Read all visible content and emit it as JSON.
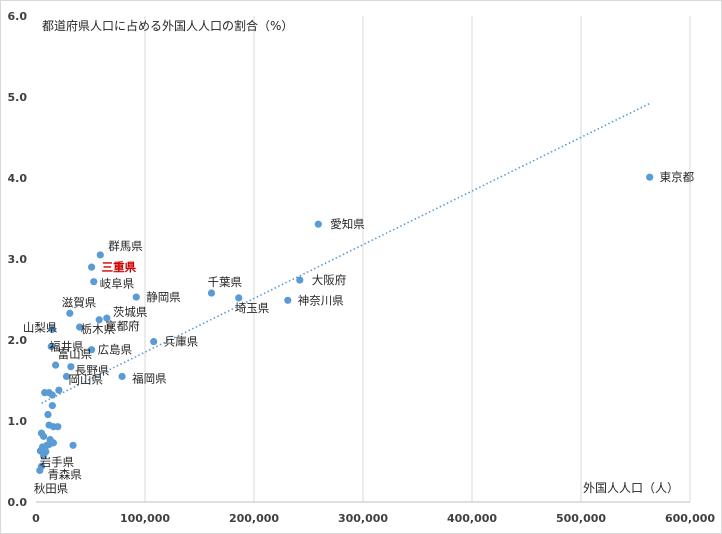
{
  "chart_data": {
    "type": "scatter",
    "title": "",
    "ylabel": "都道府県人口に占める外国人人口の割合（%）",
    "xlabel": "外国人人口（人）",
    "xlim": [
      0,
      600000
    ],
    "ylim": [
      0,
      6
    ],
    "x_ticks": [
      "0",
      "100,000",
      "200,000",
      "300,000",
      "400,000",
      "500,000",
      "600,000"
    ],
    "y_ticks": [
      "0.0",
      "1.0",
      "2.0",
      "3.0",
      "4.0",
      "5.0",
      "6.0"
    ],
    "grid": "vertical",
    "trendline": {
      "style": "dotted",
      "x": [
        5000,
        563000
      ],
      "y": [
        1.22,
        4.92
      ]
    },
    "highlight_color": "#cc0000",
    "marker_color": "#5b9bd5",
    "points": [
      {
        "label": "東京都",
        "x": 563000,
        "y": 4.01
      },
      {
        "label": "愛知県",
        "x": 259000,
        "y": 3.43
      },
      {
        "label": "大阪府",
        "x": 242000,
        "y": 2.74
      },
      {
        "label": "千葉県",
        "x": 161000,
        "y": 2.58
      },
      {
        "label": "埼玉県",
        "x": 186000,
        "y": 2.52
      },
      {
        "label": "神奈川県",
        "x": 231000,
        "y": 2.49
      },
      {
        "label": "兵庫県",
        "x": 108000,
        "y": 1.98
      },
      {
        "label": "福岡県",
        "x": 79000,
        "y": 1.55
      },
      {
        "label": "静岡県",
        "x": 92000,
        "y": 2.53
      },
      {
        "label": "群馬県",
        "x": 59000,
        "y": 3.05
      },
      {
        "label": "三重県",
        "x": 51000,
        "y": 2.9,
        "highlight": true
      },
      {
        "label": "岐阜県",
        "x": 53000,
        "y": 2.72
      },
      {
        "label": "茨城県",
        "x": 65000,
        "y": 2.27
      },
      {
        "label": "京都府",
        "x": 58000,
        "y": 2.25
      },
      {
        "label": "滋賀県",
        "x": 31000,
        "y": 2.33
      },
      {
        "label": "栃木県",
        "x": 40000,
        "y": 2.16
      },
      {
        "label": "山梨県",
        "x": 15000,
        "y": 2.13
      },
      {
        "label": "福井県",
        "x": 14000,
        "y": 1.92
      },
      {
        "label": "広島県",
        "x": 51000,
        "y": 1.88
      },
      {
        "label": "富山県",
        "x": 18000,
        "y": 1.69
      },
      {
        "label": "長野県",
        "x": 32000,
        "y": 1.67
      },
      {
        "label": "岡山県",
        "x": 28000,
        "y": 1.55
      },
      {
        "label": "岩手県",
        "x": 7000,
        "y": 0.57
      },
      {
        "label": "青森県",
        "x": 5000,
        "y": 0.44
      },
      {
        "label": "秋田県",
        "x": 3500,
        "y": 0.39
      },
      {
        "x": 8000,
        "y": 1.35
      },
      {
        "x": 12000,
        "y": 1.35
      },
      {
        "x": 15000,
        "y": 1.32
      },
      {
        "x": 21000,
        "y": 1.38
      },
      {
        "x": 15000,
        "y": 1.19
      },
      {
        "x": 11000,
        "y": 1.08
      },
      {
        "x": 12000,
        "y": 0.95
      },
      {
        "x": 16000,
        "y": 0.93
      },
      {
        "x": 20000,
        "y": 0.93
      },
      {
        "x": 5000,
        "y": 0.85
      },
      {
        "x": 7000,
        "y": 0.81
      },
      {
        "x": 13000,
        "y": 0.77
      },
      {
        "x": 16000,
        "y": 0.73
      },
      {
        "x": 12000,
        "y": 0.71
      },
      {
        "x": 10000,
        "y": 0.7
      },
      {
        "x": 34000,
        "y": 0.7
      },
      {
        "x": 6000,
        "y": 0.68
      },
      {
        "x": 8000,
        "y": 0.66
      },
      {
        "x": 4000,
        "y": 0.63
      },
      {
        "x": 9000,
        "y": 0.62
      }
    ]
  }
}
